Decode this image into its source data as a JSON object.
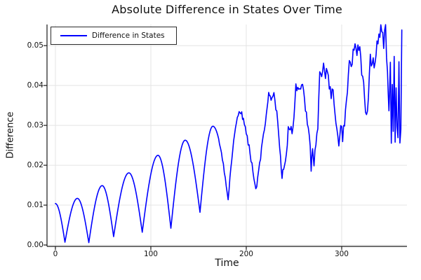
{
  "chart_data": {
    "type": "line",
    "title": "Absolute Difference in States Over Time",
    "xlabel": "Time",
    "ylabel": "Difference",
    "grid": true,
    "legend_position": "topleft",
    "series": [
      {
        "name": "Difference in States",
        "color": "#0000ff"
      }
    ],
    "xlim": [
      -8.8,
      368.4
    ],
    "ylim": [
      -0.00035,
      0.0553
    ],
    "xticks": {
      "values": [
        0,
        100,
        200,
        300
      ],
      "labels": [
        "0",
        "100",
        "200",
        "300"
      ]
    },
    "yticks": {
      "values": [
        0,
        0.01,
        0.02,
        0.03,
        0.04,
        0.05
      ],
      "labels": [
        "0.00",
        "0.01",
        "0.02",
        "0.03",
        "0.04",
        "0.05"
      ]
    },
    "colors": {
      "line": "#0000ff",
      "grid": "#e4e4e4",
      "axis": "#1a1a1a",
      "text": "#111111",
      "background": "#ffffff"
    },
    "smooth_until": 194,
    "noise_envelope": [
      [
        172,
        0.0004
      ],
      [
        195,
        0.0009
      ],
      [
        235,
        0.0013
      ],
      [
        300,
        0.0018
      ]
    ],
    "points": [
      [
        0,
        0.0104
      ],
      [
        10,
        0.0007
      ],
      [
        23,
        0.0117
      ],
      [
        35,
        0.0006
      ],
      [
        49,
        0.0149
      ],
      [
        61,
        0.0021
      ],
      [
        77,
        0.0181
      ],
      [
        91,
        0.0032
      ],
      [
        107.5,
        0.0225
      ],
      [
        121,
        0.0042
      ],
      [
        136,
        0.0263
      ],
      [
        151.5,
        0.0082
      ],
      [
        165,
        0.0298
      ],
      [
        181,
        0.0114
      ],
      [
        193.5,
        0.0335
      ],
      [
        197,
        0.032
      ],
      [
        201,
        0.027
      ],
      [
        204,
        0.023
      ],
      [
        207,
        0.019
      ],
      [
        210,
        0.0135
      ],
      [
        213,
        0.018
      ],
      [
        216,
        0.024
      ],
      [
        219,
        0.029
      ],
      [
        221,
        0.033
      ],
      [
        223.5,
        0.0377
      ],
      [
        226,
        0.036
      ],
      [
        229,
        0.0375
      ],
      [
        232,
        0.033
      ],
      [
        235,
        0.024
      ],
      [
        237.5,
        0.0175
      ],
      [
        240,
        0.0205
      ],
      [
        242,
        0.024
      ],
      [
        244,
        0.0285
      ],
      [
        246,
        0.03
      ],
      [
        248,
        0.028
      ],
      [
        250,
        0.033
      ],
      [
        252,
        0.04
      ],
      [
        254,
        0.039
      ],
      [
        256,
        0.0395
      ],
      [
        258,
        0.0405
      ],
      [
        260,
        0.038
      ],
      [
        262,
        0.034
      ],
      [
        264,
        0.031
      ],
      [
        266,
        0.0285
      ],
      [
        268,
        0.019
      ],
      [
        269.5,
        0.024
      ],
      [
        271,
        0.0205
      ],
      [
        273,
        0.026
      ],
      [
        275,
        0.03
      ],
      [
        277,
        0.0425
      ],
      [
        279,
        0.043
      ],
      [
        281,
        0.0445
      ],
      [
        283,
        0.0425
      ],
      [
        285,
        0.0445
      ],
      [
        287,
        0.04
      ],
      [
        289,
        0.038
      ],
      [
        291,
        0.04
      ],
      [
        293,
        0.033
      ],
      [
        295,
        0.0285
      ],
      [
        297,
        0.026
      ],
      [
        299,
        0.03
      ],
      [
        301,
        0.027
      ],
      [
        303,
        0.031
      ],
      [
        305,
        0.035
      ],
      [
        307,
        0.044
      ],
      [
        309,
        0.046
      ],
      [
        311,
        0.047
      ],
      [
        313,
        0.049
      ],
      [
        315,
        0.05
      ],
      [
        317,
        0.0485
      ],
      [
        319,
        0.0495
      ],
      [
        321,
        0.044
      ],
      [
        323,
        0.04
      ],
      [
        325,
        0.0316
      ],
      [
        327,
        0.035
      ],
      [
        329,
        0.042
      ],
      [
        330,
        0.047
      ],
      [
        332,
        0.045
      ],
      [
        334,
        0.046
      ],
      [
        336,
        0.049
      ],
      [
        338,
        0.052
      ],
      [
        340,
        0.0535
      ],
      [
        342,
        0.0545
      ],
      [
        344,
        0.051
      ],
      [
        346,
        0.054
      ],
      [
        348,
        0.042
      ],
      [
        349.5,
        0.033
      ],
      [
        351,
        0.046
      ],
      [
        352,
        0.025
      ],
      [
        353,
        0.042
      ],
      [
        354,
        0.028
      ],
      [
        355,
        0.047
      ],
      [
        356,
        0.0246
      ],
      [
        357,
        0.038
      ],
      [
        358,
        0.031
      ],
      [
        359,
        0.027
      ],
      [
        360,
        0.046
      ],
      [
        361,
        0.027
      ],
      [
        362,
        0.03
      ],
      [
        363,
        0.054
      ]
    ]
  }
}
